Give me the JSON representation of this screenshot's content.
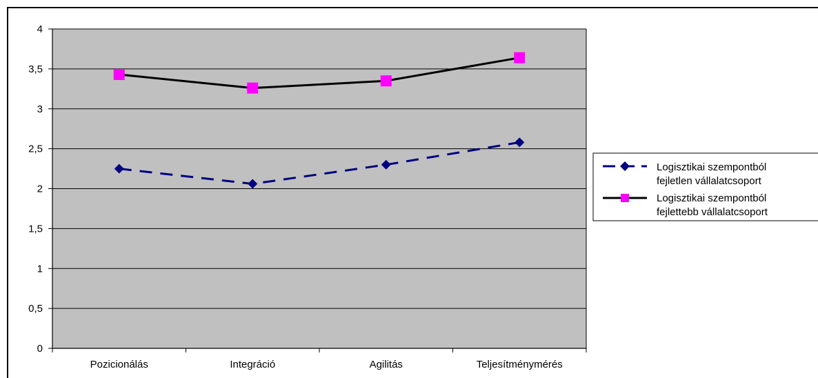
{
  "chart_data": {
    "type": "line",
    "categories": [
      "Pozicionálás",
      "Integráció",
      "Agilitás",
      "Teljesítménymérés"
    ],
    "ylim": [
      0,
      4
    ],
    "yticks": [
      "0",
      "0,5",
      "1",
      "1,5",
      "2",
      "2,5",
      "3",
      "3,5",
      "4"
    ],
    "grid": true,
    "legend_position": "right",
    "plot_background": "#c0c0c0",
    "series": [
      {
        "name_lines": [
          "Logisztikai szempontból",
          "fejletlen vállalatcsoport"
        ],
        "values": [
          2.25,
          2.06,
          2.3,
          2.58
        ],
        "color": "#000080",
        "marker_color": "#000080",
        "marker": "diamond",
        "line_style": "dashed"
      },
      {
        "name_lines": [
          "Logisztikai szempontból",
          "fejlettebb vállalatcsoport"
        ],
        "values": [
          3.43,
          3.26,
          3.35,
          3.64
        ],
        "color": "#000000",
        "marker_color": "#ff00ff",
        "marker": "square",
        "line_style": "solid"
      }
    ]
  }
}
